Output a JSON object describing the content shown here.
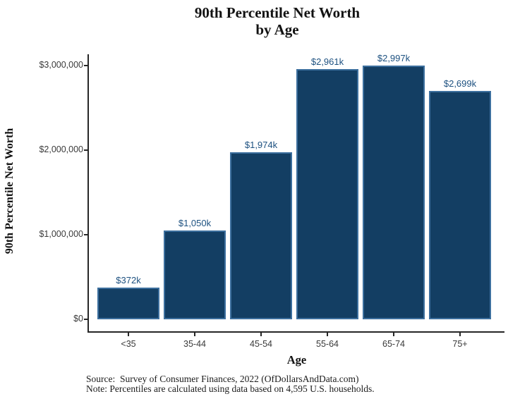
{
  "title": {
    "line1": "90th Percentile Net Worth",
    "line2": "by Age"
  },
  "axes": {
    "y_label": "90th Percentile Net Worth",
    "x_label": "Age"
  },
  "chart_data": {
    "type": "bar",
    "title": "90th Percentile Net Worth by Age",
    "xlabel": "Age",
    "ylabel": "90th Percentile Net Worth",
    "categories": [
      "<35",
      "35-44",
      "45-54",
      "55-64",
      "65-74",
      "75+"
    ],
    "values": [
      372000,
      1050000,
      1974000,
      2961000,
      2997000,
      2699000
    ],
    "bar_labels": [
      "$372k",
      "$1,050k",
      "$1,974k",
      "$2,961k",
      "$2,997k",
      "$2,699k"
    ],
    "y_ticks": [
      {
        "value": 0,
        "label": "$0"
      },
      {
        "value": 1000000,
        "label": "$1,000,000"
      },
      {
        "value": 2000000,
        "label": "$2,000,000"
      },
      {
        "value": 3000000,
        "label": "$3,000,000"
      }
    ],
    "ylim": [
      0,
      3000000
    ],
    "grid": false,
    "legend": "none",
    "colors": {
      "bar_fill": "#133e63",
      "bar_border": "#3c6f9e",
      "bar_label_text": "#1d5180",
      "axis_line": "#262626",
      "tick_text": "#3a3a3a"
    }
  },
  "footer": {
    "source": "Source:  Survey of Consumer Finances, 2022 (OfDollarsAndData.com)",
    "note": "Note: Percentiles are calculated using data based on 4,595 U.S. households."
  }
}
